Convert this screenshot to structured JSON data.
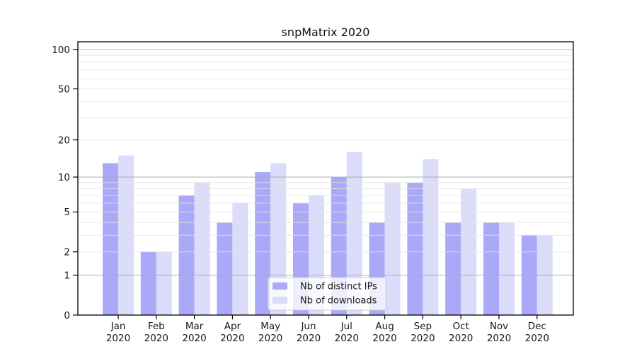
{
  "title": "snpMatrix 2020",
  "colors": {
    "ips_bar": "#a9a9f7",
    "downloads_bar": "#dbdbfa",
    "grid_major": "#ababab",
    "grid_minor": "#e3e3e3",
    "axis_frame": "#000000",
    "legend_border": "#cccccc",
    "legend_bg": "#ffffff"
  },
  "legend": {
    "items": [
      {
        "label": "Nb of distinct IPs"
      },
      {
        "label": "Nb of downloads"
      }
    ]
  },
  "chart_data": {
    "type": "bar",
    "title": "snpMatrix 2020",
    "categories": [
      "Jan 2020",
      "Feb 2020",
      "Mar 2020",
      "Apr 2020",
      "May 2020",
      "Jun 2020",
      "Jul 2020",
      "Aug 2020",
      "Sep 2020",
      "Oct 2020",
      "Nov 2020",
      "Dec 2020"
    ],
    "series": [
      {
        "name": "Nb of distinct IPs",
        "color": "#a9a9f7",
        "values": [
          13,
          2,
          7,
          4,
          11,
          6,
          10,
          4,
          9,
          4,
          4,
          3
        ]
      },
      {
        "name": "Nb of downloads",
        "color": "#dbdbfa",
        "values": [
          15,
          2,
          9,
          6,
          13,
          7,
          16,
          9,
          14,
          8,
          4,
          3
        ]
      }
    ],
    "xlabel": "",
    "ylabel": "",
    "yscale": "log(value+1)",
    "ylim": [
      0,
      114.6
    ],
    "y_tick_values": [
      0,
      1,
      2,
      5,
      10,
      20,
      50,
      100
    ],
    "grid_major_values": [
      1,
      10,
      100
    ],
    "grid_minor_values": [
      2,
      3,
      4,
      5,
      6,
      7,
      8,
      9,
      20,
      30,
      40,
      50,
      60,
      70,
      80,
      90
    ],
    "grid": "on",
    "legend_position": "lower center inside plot"
  }
}
